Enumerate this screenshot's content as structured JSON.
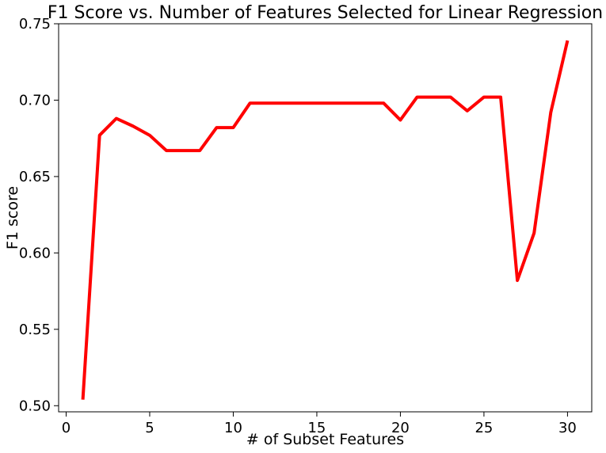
{
  "chart_data": {
    "type": "line",
    "title": "F1 Score vs. Number of Features Selected for Linear Regression",
    "xlabel": "# of Subset Features",
    "ylabel": "F1 score",
    "xlim": [
      -0.45,
      31.45
    ],
    "ylim": [
      0.496,
      0.75
    ],
    "xticks": [
      0,
      5,
      10,
      15,
      20,
      25,
      30
    ],
    "xtick_labels": [
      "0",
      "5",
      "10",
      "15",
      "20",
      "25",
      "30"
    ],
    "yticks": [
      0.5,
      0.55,
      0.6,
      0.65,
      0.7,
      0.75
    ],
    "ytick_labels": [
      "0.50",
      "0.55",
      "0.60",
      "0.65",
      "0.70",
      "0.75"
    ],
    "grid": false,
    "series": [
      {
        "color": "#ff0000",
        "x": [
          1,
          2,
          3,
          4,
          5,
          6,
          7,
          8,
          9,
          10,
          11,
          12,
          13,
          14,
          15,
          16,
          17,
          18,
          19,
          20,
          21,
          22,
          23,
          24,
          25,
          26,
          27,
          28,
          29,
          30
        ],
        "values": [
          0.504,
          0.677,
          0.688,
          0.683,
          0.677,
          0.667,
          0.667,
          0.667,
          0.682,
          0.682,
          0.698,
          0.698,
          0.698,
          0.698,
          0.698,
          0.698,
          0.698,
          0.698,
          0.698,
          0.687,
          0.702,
          0.702,
          0.702,
          0.693,
          0.702,
          0.702,
          0.582,
          0.613,
          0.692,
          0.739
        ]
      }
    ]
  }
}
